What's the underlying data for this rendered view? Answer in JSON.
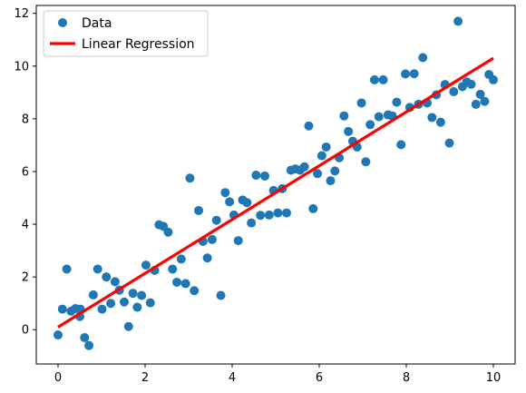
{
  "chart_data": {
    "type": "scatter",
    "title": "",
    "xlabel": "",
    "ylabel": "",
    "xlim": [
      -0.5,
      10.5
    ],
    "ylim": [
      -1.3,
      12.3
    ],
    "xticks": [
      0,
      2,
      4,
      6,
      8,
      10
    ],
    "yticks": [
      0,
      2,
      4,
      6,
      8,
      10,
      12
    ],
    "xtick_labels": [
      "0",
      "2",
      "4",
      "6",
      "8",
      "10"
    ],
    "ytick_labels": [
      "0",
      "2",
      "4",
      "6",
      "8",
      "10",
      "12"
    ],
    "grid": false,
    "legend_position": "top-left",
    "series": [
      {
        "name": "Data",
        "kind": "scatter",
        "color": "#1f77b4",
        "x": [
          0.0,
          0.1,
          0.2,
          0.3,
          0.4,
          0.5,
          0.51,
          0.61,
          0.71,
          0.81,
          0.91,
          1.01,
          1.11,
          1.21,
          1.31,
          1.41,
          1.52,
          1.62,
          1.72,
          1.82,
          1.92,
          2.02,
          2.12,
          2.22,
          2.32,
          2.42,
          2.53,
          2.63,
          2.73,
          2.83,
          2.93,
          3.03,
          3.13,
          3.23,
          3.33,
          3.43,
          3.54,
          3.64,
          3.74,
          3.84,
          3.94,
          4.04,
          4.14,
          4.24,
          4.34,
          4.44,
          4.55,
          4.65,
          4.75,
          4.85,
          4.95,
          5.05,
          5.15,
          5.25,
          5.35,
          5.45,
          5.56,
          5.66,
          5.76,
          5.86,
          5.96,
          6.06,
          6.16,
          6.26,
          6.36,
          6.46,
          6.57,
          6.67,
          6.77,
          6.87,
          6.97,
          7.07,
          7.17,
          7.27,
          7.37,
          7.47,
          7.58,
          7.68,
          7.78,
          7.88,
          7.98,
          8.08,
          8.18,
          8.28,
          8.38,
          8.48,
          8.59,
          8.69,
          8.79,
          8.89,
          8.99,
          9.09,
          9.19,
          9.29,
          9.39,
          9.49,
          9.6,
          9.7,
          9.8,
          9.9,
          10.0
        ],
        "y": [
          -0.2,
          0.78,
          2.3,
          0.7,
          0.8,
          0.5,
          0.78,
          -0.3,
          -0.6,
          1.32,
          2.3,
          0.78,
          2.0,
          1.0,
          1.82,
          1.5,
          1.05,
          0.12,
          1.38,
          0.85,
          1.3,
          2.45,
          1.02,
          2.25,
          3.98,
          3.92,
          3.7,
          2.3,
          1.8,
          2.68,
          1.75,
          5.75,
          1.48,
          4.52,
          3.35,
          2.72,
          3.42,
          4.15,
          1.3,
          5.2,
          4.85,
          4.35,
          3.38,
          4.92,
          4.82,
          4.05,
          5.86,
          4.34,
          5.83,
          4.35,
          5.28,
          4.43,
          5.35,
          4.43,
          6.05,
          6.1,
          6.05,
          6.18,
          7.73,
          4.59,
          5.92,
          6.6,
          6.93,
          5.65,
          6.02,
          6.52,
          8.11,
          7.52,
          7.15,
          6.93,
          8.6,
          6.37,
          7.78,
          9.48,
          8.08,
          9.48,
          8.15,
          8.11,
          8.63,
          7.02,
          9.7,
          8.43,
          9.71,
          8.55,
          10.32,
          8.6,
          8.05,
          8.91,
          7.87,
          9.3,
          7.08,
          9.03,
          11.7,
          9.22,
          9.4,
          9.31,
          8.55,
          8.93,
          8.66,
          9.68,
          9.48
        ]
      },
      {
        "name": "Linear Regression",
        "kind": "line",
        "color": "#ff0000",
        "x": [
          0,
          10
        ],
        "y": [
          0.1,
          10.3
        ]
      }
    ]
  }
}
